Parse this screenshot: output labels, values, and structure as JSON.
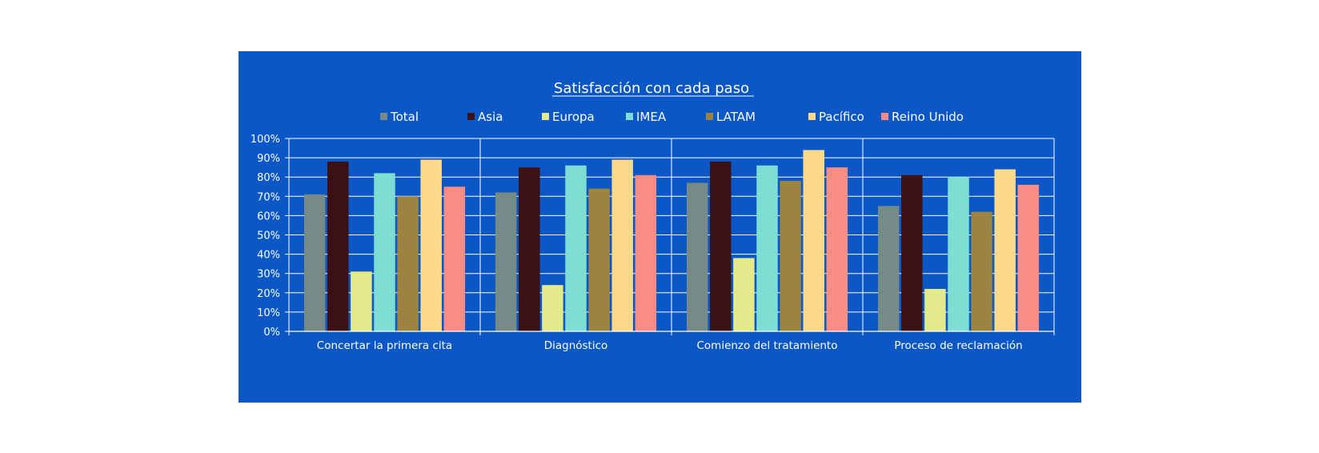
{
  "chart_data": {
    "type": "bar",
    "title": "Satisfacción con cada paso",
    "categories": [
      "Concertar la primera cita",
      "Diagnóstico",
      "Comienzo del tratamiento",
      "Proceso de reclamación"
    ],
    "series": [
      {
        "name": "Total",
        "color": "#768a87",
        "values": [
          71,
          72,
          77,
          65
        ]
      },
      {
        "name": "Asia",
        "color": "#3b1114",
        "values": [
          88,
          85,
          88,
          81
        ]
      },
      {
        "name": "Europa",
        "color": "#e2ea8c",
        "values": [
          31,
          24,
          38,
          22
        ]
      },
      {
        "name": "IMEA",
        "color": "#7ddfd4",
        "values": [
          82,
          86,
          86,
          80
        ]
      },
      {
        "name": "LATAM",
        "color": "#9a8440",
        "values": [
          70,
          74,
          78,
          62
        ]
      },
      {
        "name": "Pacífico",
        "color": "#fdd98a",
        "values": [
          89,
          89,
          94,
          84
        ]
      },
      {
        "name": "Reino Unido",
        "color": "#fa8c86",
        "values": [
          75,
          81,
          85,
          76
        ]
      }
    ],
    "ylim": [
      0,
      100
    ],
    "yticks": [
      "0%",
      "10%",
      "20%",
      "30%",
      "40%",
      "50%",
      "60%",
      "70%",
      "80%",
      "90%",
      "100%"
    ],
    "grid": true,
    "legend": "top",
    "background": "#0a57c5"
  }
}
